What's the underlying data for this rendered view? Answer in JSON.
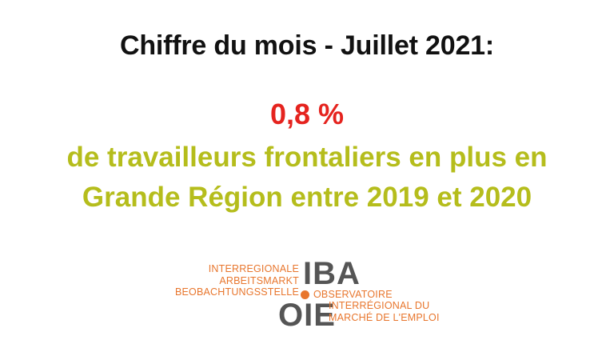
{
  "title": "Chiffre du mois - Juillet 2021:",
  "figure": "0,8 %",
  "description_line1": "de travailleurs frontaliers en plus en",
  "description_line2": "Grande Région entre 2019 et 2020",
  "logo": {
    "left_lines": [
      "INTERREGIONALE",
      "ARBEITSMARKT",
      "BEOBACHTUNGSSTELLE"
    ],
    "iba": "IBA",
    "oie": "OIE",
    "observatoire": "OBSERVATOIRE",
    "right_lines": [
      "INTERRÉGIONAL DU",
      "MARCHÉ DE L'EMPLOI"
    ]
  },
  "colors": {
    "title": "#111111",
    "figure": "#e5231e",
    "description": "#b5bd1c",
    "logo_orange": "#e8762d",
    "logo_gray": "#555555"
  }
}
